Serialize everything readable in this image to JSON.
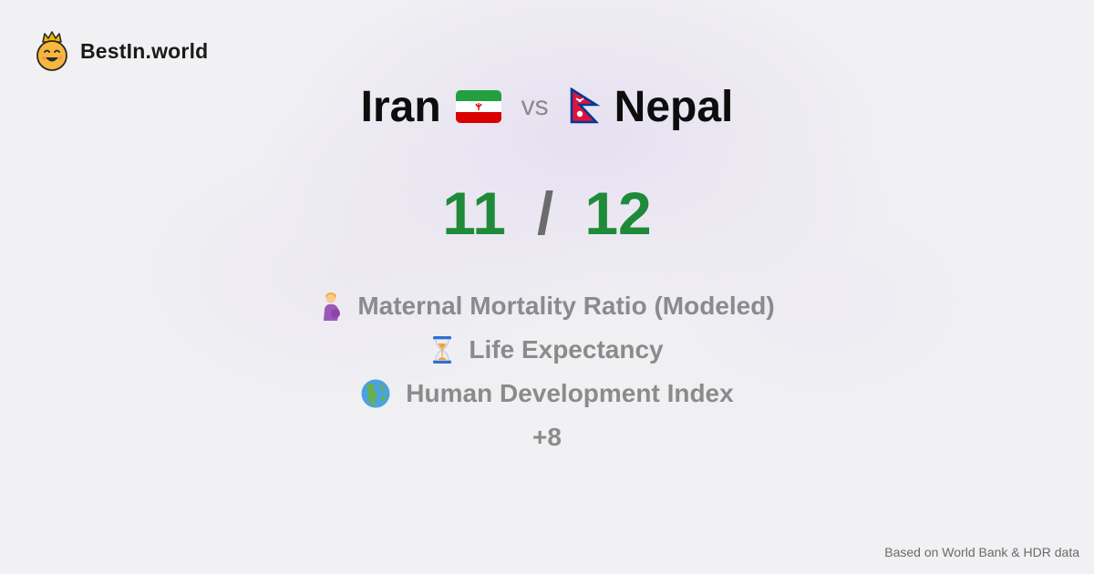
{
  "brand": {
    "name": "BestIn.world",
    "logo_icon": "crowned-smiley-icon"
  },
  "comparison": {
    "left_country": "Iran",
    "left_flag_icon": "iran-flag-icon",
    "vs_label": "vs",
    "right_flag_icon": "nepal-flag-icon",
    "right_country": "Nepal"
  },
  "score": {
    "left": "11",
    "separator": "/",
    "right": "12",
    "color": "#1f8a3a"
  },
  "metrics": [
    {
      "label": "Maternal Mortality Ratio (Modeled)",
      "icon": "pregnant-woman-icon"
    },
    {
      "label": "Life Expectancy",
      "icon": "hourglass-icon"
    },
    {
      "label": "Human Development Index",
      "icon": "globe-icon"
    }
  ],
  "more_label": "+8",
  "footer": {
    "source": "Based on World Bank & HDR data"
  }
}
